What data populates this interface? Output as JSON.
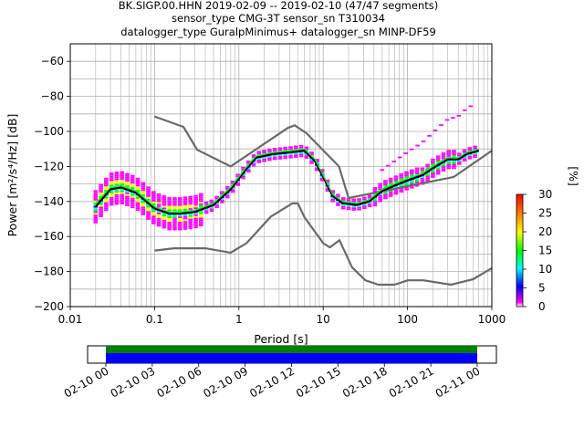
{
  "title": {
    "line1": "BK.SIGP.00.HHN   2019-02-09 -- 2019-02-10  (47/47 segments)",
    "line2": "sensor_type CMG-3T sensor_sn T310034",
    "line3": "datalogger_type GuralpMinimus+ datalogger_sn MINP-DF59"
  },
  "colorbar": {
    "label": "[%]",
    "ticks": [
      "0",
      "5",
      "10",
      "15",
      "20",
      "25",
      "30"
    ],
    "range": [
      0,
      30
    ]
  },
  "timeline": {
    "ticks": [
      "02-10 00",
      "02-10 03",
      "02-10 06",
      "02-10 09",
      "02-10 12",
      "02-10 15",
      "02-10 18",
      "02-10 21",
      "02-11 00"
    ],
    "bar_colors": [
      "#008000",
      "#0000ff"
    ]
  },
  "colors": {
    "noise_model": "#6a6a6a",
    "mode": "#000000",
    "mean": "#00ff00",
    "colormap": [
      "#ffffff",
      "#ff00ff",
      "#0000ff",
      "#00ffff",
      "#00ff00",
      "#ffff00",
      "#ff7f00",
      "#ff0000"
    ]
  },
  "chart_data": {
    "type": "line",
    "xlabel": "Period [s]",
    "ylabel": "Power [m²/s⁴/Hz] [dB]",
    "xscale": "log",
    "xlim": [
      0.01,
      1000
    ],
    "ylim": [
      -200,
      -50
    ],
    "grid": true,
    "xticks": [
      "0.01",
      "0.1",
      "1",
      "10",
      "100",
      "1000"
    ],
    "yticks": [
      "−60",
      "−80",
      "−100",
      "−120",
      "−140",
      "−160",
      "−180",
      "−200"
    ],
    "series": [
      {
        "kind": "high_noise_model",
        "x": [
          0.1,
          0.22,
          0.32,
          0.8,
          3.8,
          4.6,
          6.3,
          15.4,
          20,
          354,
          1000
        ],
        "y": [
          -91.5,
          -97.4,
          -110.5,
          -120,
          -98,
          -96.5,
          -101,
          -120,
          -138,
          -126,
          -111
        ]
      },
      {
        "kind": "low_noise_model",
        "x": [
          0.1,
          0.17,
          0.4,
          0.8,
          1.24,
          2.4,
          4.3,
          5,
          6,
          10,
          12,
          15.6,
          21.9,
          31.6,
          45,
          70,
          101,
          154,
          328,
          600,
          1000
        ],
        "y": [
          -168,
          -166.7,
          -166.7,
          -169.2,
          -163.7,
          -148.6,
          -141.1,
          -141.1,
          -149,
          -163.8,
          -166.2,
          -162.1,
          -177.5,
          -185,
          -187.5,
          -187.5,
          -185,
          -185,
          -187.5,
          -184.4,
          -178
        ]
      },
      {
        "kind": "mode",
        "x": [
          0.02,
          0.03,
          0.04,
          0.06,
          0.08,
          0.1,
          0.15,
          0.2,
          0.3,
          0.5,
          0.8,
          1.2,
          1.6,
          2.5,
          4,
          6,
          8,
          10,
          13,
          17,
          25,
          35,
          50,
          70,
          100,
          150,
          200,
          300,
          400,
          500,
          700
        ],
        "y": [
          -143,
          -133,
          -132,
          -135,
          -140,
          -144,
          -147,
          -147,
          -146,
          -142,
          -133,
          -122,
          -115,
          -113,
          -112,
          -111,
          -117,
          -126,
          -137,
          -141,
          -142,
          -140,
          -134,
          -131,
          -128,
          -125,
          -121,
          -116,
          -116,
          -113,
          -111
        ]
      },
      {
        "kind": "mean",
        "x": [
          0.02,
          0.03,
          0.04,
          0.06,
          0.08,
          0.1,
          0.15,
          0.2,
          0.3,
          0.5,
          0.8,
          1.2,
          1.6,
          2.5,
          4,
          6,
          8,
          10,
          13,
          17,
          25,
          35,
          50,
          70,
          100,
          150,
          200,
          300,
          400,
          500,
          700
        ],
        "y": [
          -141,
          -132,
          -131,
          -134,
          -139,
          -143,
          -146,
          -146,
          -145,
          -141,
          -132,
          -121,
          -114,
          -112,
          -111,
          -110,
          -116,
          -125,
          -136,
          -140,
          -141,
          -139,
          -133,
          -130,
          -127,
          -124,
          -120,
          -115,
          -115,
          -112,
          -110
        ]
      }
    ]
  }
}
